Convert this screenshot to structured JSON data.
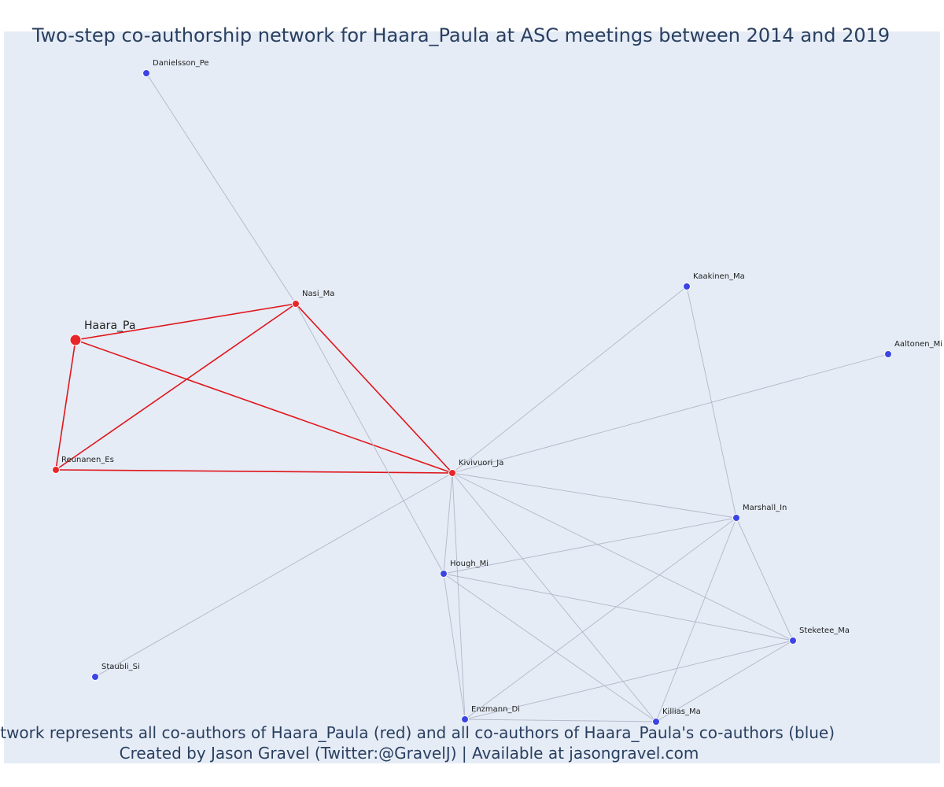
{
  "title": "Two-step co-authorship network for Haara_Paula at ASC meetings between 2014 and 2019",
  "caption_line1": "Network represents all co-authors of Haara_Paula (red) and all co-authors of Haara_Paula's co-authors (blue)",
  "caption_line2": "Created by Jason Gravel (Twitter:@GravelJ) | Available at jasongravel.com",
  "colors": {
    "plot_bg": "#e5ecf6",
    "red": "#e8262a",
    "blue": "#3c44e3",
    "red_edge": "#e0161b",
    "grey_edge": "#b3b7c8",
    "text": "#2a3f5f"
  },
  "chart_data": {
    "type": "network",
    "nodes": [
      {
        "id": "Haara_Pa",
        "label": "Haara_Pa",
        "group": "red",
        "focal": true
      },
      {
        "id": "Nasi_Ma",
        "label": "Nasi_Ma",
        "group": "red"
      },
      {
        "id": "Reunanen_Es",
        "label": "Reunanen_Es",
        "group": "red"
      },
      {
        "id": "Kivivuori_Ja",
        "label": "Kivivuori_Ja",
        "group": "red"
      },
      {
        "id": "Danielsson_Pe",
        "label": "Danielsson_Pe",
        "group": "blue"
      },
      {
        "id": "Kaakinen_Ma",
        "label": "Kaakinen_Ma",
        "group": "blue"
      },
      {
        "id": "Aaltonen_Mi",
        "label": "Aaltonen_Mi",
        "group": "blue"
      },
      {
        "id": "Marshall_In",
        "label": "Marshall_In",
        "group": "blue"
      },
      {
        "id": "Hough_Mi",
        "label": "Hough_Mi",
        "group": "blue"
      },
      {
        "id": "Steketee_Ma",
        "label": "Steketee_Ma",
        "group": "blue"
      },
      {
        "id": "Staubli_Si",
        "label": "Staubli_Si",
        "group": "blue"
      },
      {
        "id": "Enzmann_Di",
        "label": "Enzmann_Di",
        "group": "blue"
      },
      {
        "id": "Killias_Ma",
        "label": "Killias_Ma",
        "group": "blue"
      }
    ],
    "edges": [
      [
        "Haara_Pa",
        "Nasi_Ma"
      ],
      [
        "Haara_Pa",
        "Reunanen_Es"
      ],
      [
        "Haara_Pa",
        "Kivivuori_Ja"
      ],
      [
        "Nasi_Ma",
        "Reunanen_Es"
      ],
      [
        "Nasi_Ma",
        "Kivivuori_Ja"
      ],
      [
        "Reunanen_Es",
        "Kivivuori_Ja"
      ],
      [
        "Danielsson_Pe",
        "Nasi_Ma"
      ],
      [
        "Nasi_Ma",
        "Hough_Mi"
      ],
      [
        "Kivivuori_Ja",
        "Kaakinen_Ma"
      ],
      [
        "Kivivuori_Ja",
        "Aaltonen_Mi"
      ],
      [
        "Kivivuori_Ja",
        "Marshall_In"
      ],
      [
        "Kivivuori_Ja",
        "Hough_Mi"
      ],
      [
        "Kivivuori_Ja",
        "Steketee_Ma"
      ],
      [
        "Kivivuori_Ja",
        "Staubli_Si"
      ],
      [
        "Kivivuori_Ja",
        "Enzmann_Di"
      ],
      [
        "Kivivuori_Ja",
        "Killias_Ma"
      ],
      [
        "Kaakinen_Ma",
        "Marshall_In"
      ],
      [
        "Marshall_In",
        "Hough_Mi"
      ],
      [
        "Marshall_In",
        "Steketee_Ma"
      ],
      [
        "Marshall_In",
        "Enzmann_Di"
      ],
      [
        "Marshall_In",
        "Killias_Ma"
      ],
      [
        "Hough_Mi",
        "Steketee_Ma"
      ],
      [
        "Hough_Mi",
        "Enzmann_Di"
      ],
      [
        "Hough_Mi",
        "Killias_Ma"
      ],
      [
        "Steketee_Ma",
        "Enzmann_Di"
      ],
      [
        "Steketee_Ma",
        "Killias_Ma"
      ],
      [
        "Enzmann_Di",
        "Killias_Ma"
      ]
    ]
  }
}
